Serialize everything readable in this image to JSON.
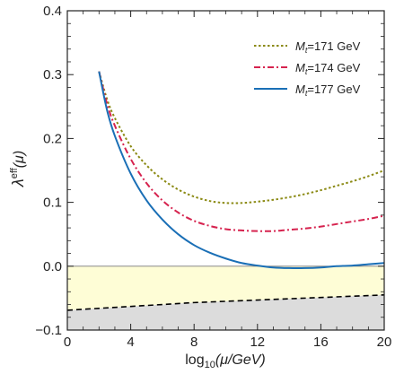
{
  "chart_data": {
    "type": "line",
    "ylabel": "λ^eff(μ)",
    "ylabel_main": "λ",
    "ylabel_sup": "eff",
    "ylabel_arg": "(μ)",
    "xlabel_pre": "log",
    "xlabel_sub": "10",
    "xlabel_arg": "(μ/GeV)",
    "xlim": [
      0,
      20
    ],
    "ylim": [
      -0.1,
      0.4
    ],
    "xticks": [
      "0",
      "4",
      "8",
      "12",
      "16",
      "20"
    ],
    "yticks": [
      "−0.1",
      "0.0",
      "0.1",
      "0.2",
      "0.3",
      "0.4"
    ],
    "xtick_values": [
      0,
      4,
      8,
      12,
      16,
      20
    ],
    "ytick_values": [
      -0.1,
      0.0,
      0.1,
      0.2,
      0.3,
      0.4
    ],
    "legend_position": "top-right",
    "series": [
      {
        "name": "Mt=171 GeV",
        "label_sym": "M",
        "label_sub": "t",
        "label_rest": "=171 GeV",
        "color": "#8b8a14",
        "style": "dotted",
        "x": [
          2.0,
          2.5,
          3.0,
          4.0,
          5.0,
          6.0,
          7.0,
          8.0,
          9.0,
          10.0,
          11.0,
          12.0,
          13.0,
          14.0,
          15.0,
          16.0,
          17.0,
          18.0,
          19.0,
          20.0
        ],
        "y": [
          0.305,
          0.262,
          0.232,
          0.188,
          0.158,
          0.136,
          0.12,
          0.109,
          0.102,
          0.099,
          0.099,
          0.101,
          0.104,
          0.108,
          0.113,
          0.119,
          0.126,
          0.133,
          0.141,
          0.15
        ]
      },
      {
        "name": "Mt=174 GeV",
        "label_sym": "M",
        "label_sub": "t",
        "label_rest": "=174 GeV",
        "color": "#d6234f",
        "style": "dashdot",
        "x": [
          2.0,
          2.5,
          3.0,
          4.0,
          5.0,
          6.0,
          7.0,
          8.0,
          9.0,
          10.0,
          11.0,
          12.0,
          13.0,
          14.0,
          15.0,
          16.0,
          17.0,
          18.0,
          19.0,
          20.0
        ],
        "y": [
          0.305,
          0.255,
          0.22,
          0.168,
          0.13,
          0.103,
          0.084,
          0.071,
          0.063,
          0.058,
          0.056,
          0.055,
          0.055,
          0.057,
          0.059,
          0.062,
          0.066,
          0.07,
          0.074,
          0.079
        ]
      },
      {
        "name": "Mt=177 GeV",
        "label_sym": "M",
        "label_sub": "t",
        "label_rest": "=177 GeV",
        "color": "#1a6fb6",
        "style": "solid",
        "x": [
          2.0,
          2.5,
          3.0,
          4.0,
          5.0,
          6.0,
          7.0,
          8.0,
          9.0,
          10.0,
          11.0,
          12.0,
          13.0,
          14.0,
          15.0,
          16.0,
          17.0,
          18.0,
          19.0,
          20.0
        ],
        "y": [
          0.305,
          0.245,
          0.204,
          0.145,
          0.103,
          0.073,
          0.05,
          0.033,
          0.021,
          0.012,
          0.005,
          0.001,
          -0.002,
          -0.003,
          -0.003,
          -0.002,
          0.0,
          0.001,
          0.003,
          0.005
        ]
      }
    ],
    "bound": {
      "style": "dashed",
      "color": "#000000",
      "x": [
        0,
        2,
        4,
        6,
        8,
        10,
        12,
        14,
        16,
        18,
        20
      ],
      "y": [
        -0.069,
        -0.066,
        -0.063,
        -0.06,
        -0.057,
        -0.055,
        -0.053,
        -0.051,
        -0.049,
        -0.047,
        -0.045
      ]
    },
    "regions": {
      "metastable_color": "#fefdd6",
      "unstable_color": "#dcdcdc"
    }
  }
}
